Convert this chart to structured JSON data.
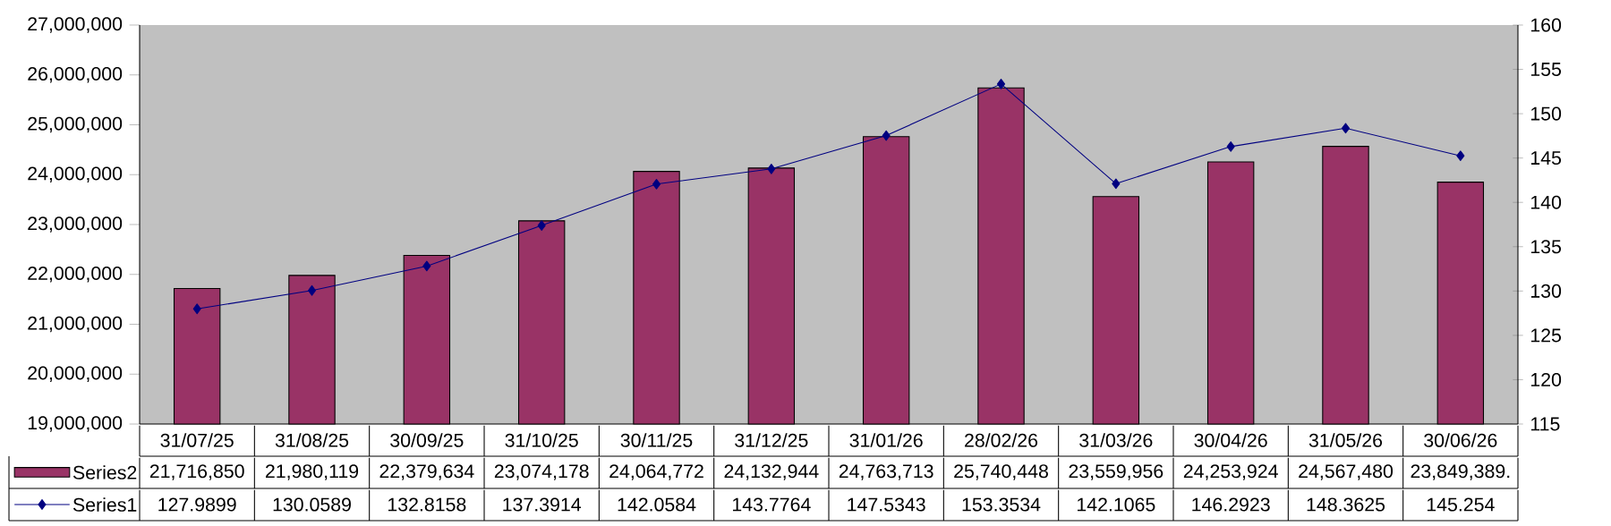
{
  "chart_data": {
    "type": "bar",
    "categories": [
      "31/07/25",
      "31/08/25",
      "30/09/25",
      "31/10/25",
      "30/11/25",
      "31/12/25",
      "31/01/26",
      "28/02/26",
      "31/03/26",
      "30/04/26",
      "31/05/26",
      "30/06/26"
    ],
    "series": [
      {
        "name": "Series2",
        "color": "#993366",
        "values": [
          21716850,
          21980119,
          22379634,
          23074178,
          24064772,
          24132944,
          24763713,
          25740448,
          23559956,
          24253924,
          24567480,
          23849389
        ],
        "value_labels": [
          "21,716,850",
          "21,980,119",
          "22,379,634",
          "23,074,178",
          "24,064,772",
          "24,132,944",
          "24,763,713",
          "25,740,448",
          "23,559,956",
          "24,253,924",
          "24,567,480",
          "23,849,389."
        ]
      },
      {
        "name": "Series1",
        "type": "line",
        "axis": "y2",
        "color": "#000080",
        "marker": "diamond",
        "line_style": "solid",
        "values": [
          127.9899,
          130.0589,
          132.8158,
          137.3914,
          142.0584,
          143.7764,
          147.5343,
          153.3534,
          142.1065,
          146.2923,
          148.3625,
          145.254
        ],
        "value_labels": [
          "127.9899",
          "130.0589",
          "132.8158",
          "137.3914",
          "142.0584",
          "143.7764",
          "147.5343",
          "153.3534",
          "142.1065",
          "146.2923",
          "148.3625",
          "145.254"
        ]
      }
    ],
    "ylim": [
      19000000,
      27000000
    ],
    "yticks": [
      {
        "value": 19000000,
        "label": "19,000,000"
      },
      {
        "value": 20000000,
        "label": "20,000,000"
      },
      {
        "value": 21000000,
        "label": "21,000,000"
      },
      {
        "value": 22000000,
        "label": "22,000,000"
      },
      {
        "value": 23000000,
        "label": "23,000,000"
      },
      {
        "value": 24000000,
        "label": "24,000,000"
      },
      {
        "value": 25000000,
        "label": "25,000,000"
      },
      {
        "value": 26000000,
        "label": "26,000,000"
      },
      {
        "value": 27000000,
        "label": "27,000,000"
      }
    ],
    "y2lim": [
      115,
      160
    ],
    "y2ticks": [
      115,
      120,
      125,
      130,
      135,
      140,
      145,
      150,
      155,
      160
    ],
    "grid": false,
    "legend": "bottom left"
  }
}
